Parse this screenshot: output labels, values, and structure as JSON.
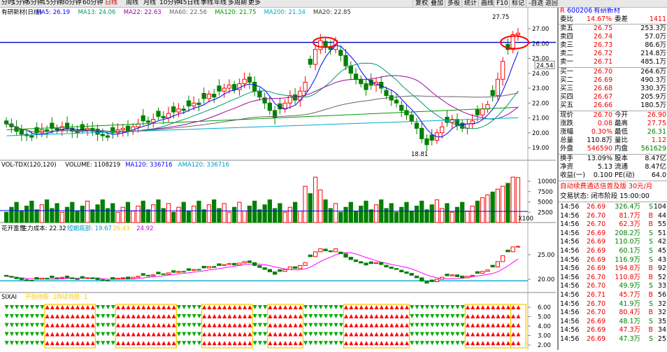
{
  "topbar": {
    "periods": [
      "分时",
      "1分钟",
      "5分钟",
      "15分钟",
      "30分钟",
      "60分钟",
      "日线",
      "周线",
      "月线",
      "10分钟",
      "45日线",
      "季线",
      "年线",
      "多周期",
      "更多"
    ],
    "active_index": 6,
    "right_buttons": [
      "复权",
      "叠加",
      "多股",
      "统计",
      "画线",
      "F10",
      "标记",
      "-自选",
      "返回"
    ]
  },
  "main_panel": {
    "header": [
      {
        "text": "有研新材(日线)",
        "color": "#000000"
      },
      {
        "text": "MA5: 26.19",
        "color": "#0000ff"
      },
      {
        "text": "MA13: 24.06",
        "color": "#009966"
      },
      {
        "text": "MA22: 22.63",
        "color": "#a000a0"
      },
      {
        "text": "MA60: 22.56",
        "color": "#666666"
      },
      {
        "text": "MA120: 21.75",
        "color": "#009900"
      },
      {
        "text": "MA200: 21.34",
        "color": "#00aacc"
      },
      {
        "text": "MA20: 22.85",
        "color": "#333333"
      }
    ],
    "y_ticks": [
      "27.00",
      "26.00",
      "25.00",
      "24.00",
      "23.00",
      "22.00",
      "21.00",
      "20.00",
      "19.00"
    ],
    "high_label": "27.75",
    "low_label": "18.81",
    "last_price_tag": "24.54"
  },
  "volume_panel": {
    "header": [
      {
        "text": "VOL-TDX(120,120)",
        "color": "#000000"
      },
      {
        "text": "VOLUME: 1108219",
        "color": "#000000"
      },
      {
        "text": "MA120: 336716",
        "color": "#0000ff"
      },
      {
        "text": "AMA120: 336716",
        "color": "#0099cc"
      }
    ],
    "y_ticks": [
      "10000",
      "7500",
      "5000",
      "2500"
    ],
    "unit": "X100"
  },
  "indicator_panel": {
    "header": [
      {
        "text": "花开富贵",
        "color": "#000000"
      },
      {
        "text": "主力成本: 22.32",
        "color": "#000000"
      },
      {
        "text": "短期底部: 19.67",
        "color": "#0099cc"
      },
      {
        "text": "26.43",
        "color": "#ffcc00"
      },
      {
        "text": "24.92",
        "color": "#cc00cc"
      }
    ],
    "y_ticks": [
      "25.00",
      "20.00"
    ]
  },
  "sixai_panel": {
    "header": [
      {
        "text": "SIXAI",
        "color": "#000000"
      },
      {
        "text": "开始持股: 1",
        "color": "#ffcc00"
      },
      {
        "text": "持续持股: 1",
        "color": "#ffcc00"
      }
    ],
    "y_ticks": [
      "6.00",
      "5.00",
      "4.00",
      "3.00",
      "2.00"
    ]
  },
  "quote": {
    "code": "600206",
    "name": "有研新材",
    "weibi_label": "委比",
    "weibi": "14.67%",
    "weicha_label": "委差",
    "weicha": "1411",
    "asks": [
      {
        "label": "卖五",
        "price": "26.75",
        "vol": "253.3万"
      },
      {
        "label": "卖四",
        "price": "26.74",
        "vol": "57.0万"
      },
      {
        "label": "卖三",
        "price": "26.73",
        "vol": "86.6万"
      },
      {
        "label": "卖二",
        "price": "26.72",
        "vol": "214.8万"
      },
      {
        "label": "卖一",
        "price": "26.71",
        "vol": "485.1万"
      }
    ],
    "bids": [
      {
        "label": "买一",
        "price": "26.70",
        "vol": "264.6万"
      },
      {
        "label": "买二",
        "price": "26.69",
        "vol": "490.3万"
      },
      {
        "label": "买三",
        "price": "26.68",
        "vol": "330.3万"
      },
      {
        "label": "买四",
        "price": "26.67",
        "vol": "205.9万"
      },
      {
        "label": "买五",
        "price": "26.66",
        "vol": "180.5万"
      }
    ],
    "stats": [
      {
        "l1": "现价",
        "v1": "26.70",
        "c1": "red",
        "l2": "今开",
        "v2": "26.90",
        "c2": "red"
      },
      {
        "l1": "涨跌",
        "v1": "0.08",
        "c1": "red",
        "l2": "最高",
        "v2": "27.75",
        "c2": "red"
      },
      {
        "l1": "涨幅",
        "v1": "0.30%",
        "c1": "red",
        "l2": "最低",
        "v2": "26.31",
        "c2": "grn"
      },
      {
        "l1": "总量",
        "v1": "110.8万",
        "c1": "blk",
        "l2": "量比",
        "v2": "1.12",
        "c2": "red"
      },
      {
        "l1": "外盘",
        "v1": "546590",
        "c1": "red",
        "l2": "内盘",
        "v2": "561629",
        "c2": "grn"
      }
    ],
    "stats2": [
      {
        "l1": "换手",
        "v1": "13.09%",
        "l2": "股本",
        "v2": "8.47亿"
      },
      {
        "l1": "净资",
        "v1": "5.13",
        "l2": "流通",
        "v2": "8.47亿"
      },
      {
        "l1": "收益(一)",
        "v1": "0.100",
        "l2": "PE(动)",
        "v2": "64.0"
      }
    ],
    "promo": "自动续费通达信普及版  30元/月",
    "trade_status": "交易状态: 闭市阶段 15:00:00",
    "ticks": [
      {
        "t": "14:56",
        "p": "26.69",
        "v": "326.4万",
        "s": "S",
        "n": "104"
      },
      {
        "t": "14:56",
        "p": "26.70",
        "v": "81.7万",
        "s": "B",
        "n": "44"
      },
      {
        "t": "14:56",
        "p": "26.70",
        "v": "62.3万",
        "s": "B",
        "n": "55"
      },
      {
        "t": "14:56",
        "p": "26.69",
        "v": "208.2万",
        "s": "S",
        "n": "51"
      },
      {
        "t": "14:56",
        "p": "26.69",
        "v": "110.0万",
        "s": "S",
        "n": "42"
      },
      {
        "t": "14:56",
        "p": "26.69",
        "v": "60.1万",
        "s": "S",
        "n": "45"
      },
      {
        "t": "14:56",
        "p": "26.69",
        "v": "116.9万",
        "s": "S",
        "n": "43"
      },
      {
        "t": "14:56",
        "p": "26.69",
        "v": "194.8万",
        "s": "B",
        "n": "92"
      },
      {
        "t": "14:56",
        "p": "26.70",
        "v": "110.8万",
        "s": "B",
        "n": "52"
      },
      {
        "t": "14:56",
        "p": "26.70",
        "v": "49.9万",
        "s": "S",
        "n": "33"
      },
      {
        "t": "14:56",
        "p": "26.71",
        "v": "45.7万",
        "s": "B",
        "n": "56"
      },
      {
        "t": "14:56",
        "p": "26.70",
        "v": "41.9万",
        "s": "S",
        "n": "32"
      },
      {
        "t": "14:56",
        "p": "26.70",
        "v": "80.4万",
        "s": "B",
        "n": "32"
      },
      {
        "t": "14:56",
        "p": "26.69",
        "v": "48.1万",
        "s": "S",
        "n": "35"
      },
      {
        "t": "14:56",
        "p": "26.69",
        "v": "47.3万",
        "s": "B",
        "n": "34"
      },
      {
        "t": "14:56",
        "p": "26.69",
        "v": "47.3万",
        "s": "S",
        "n": "25"
      }
    ]
  },
  "colors": {
    "up": "#ff0000",
    "down": "#008000",
    "grid": "#cccccc",
    "line_blue": "#0000cc",
    "ellipse": "#ff0000"
  }
}
